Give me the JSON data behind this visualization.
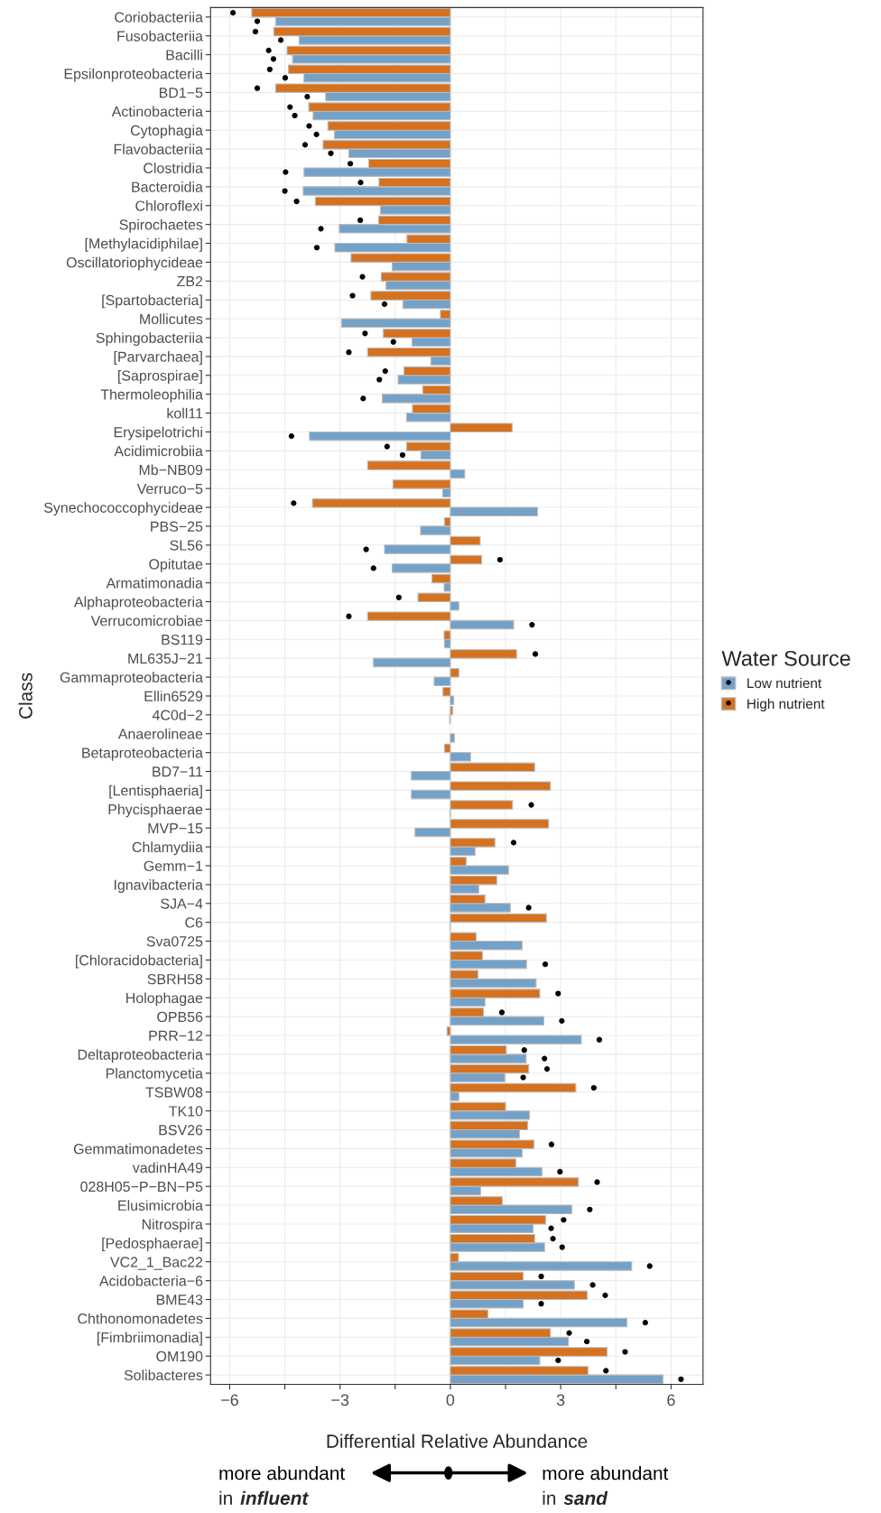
{
  "chart_data": {
    "type": "bar",
    "orientation": "horizontal",
    "xlabel": "Differential Relative Abundance",
    "ylabel": "Class",
    "legend_title": "Water Source",
    "categories": [
      "Coriobacteriia",
      "Fusobacteriia",
      "Bacilli",
      "Epsilonproteobacteria",
      "BD1−5",
      "Actinobacteria",
      "Cytophagia",
      "Flavobacteriia",
      "Clostridia",
      "Bacteroidia",
      "Chloroflexi",
      "Spirochaetes",
      "[Methylacidiphilae]",
      "Oscillatoriophycideae",
      "ZB2",
      "[Spartobacteria]",
      "Mollicutes",
      "Sphingobacteriia",
      "[Parvarchaea]",
      "[Saprospirae]",
      "Thermoleophilia",
      "koll11",
      "Erysipelotrichi",
      "Acidimicrobiia",
      "Mb−NB09",
      "Verruco−5",
      "Synechococcophycideae",
      "PBS−25",
      "SL56",
      "Opitutae",
      "Armatimonadia",
      "Alphaproteobacteria",
      "Verrucomicrobiae",
      "BS119",
      "ML635J−21",
      "Gammaproteobacteria",
      "Ellin6529",
      "4C0d−2",
      "Anaerolineae",
      "Betaproteobacteria",
      "BD7−11",
      "[Lentisphaeria]",
      "Phycisphaerae",
      "MVP−15",
      "Chlamydiia",
      "Gemm−1",
      "Ignavibacteria",
      "SJA−4",
      "C6",
      "Sva0725",
      "[Chloracidobacteria]",
      "SBRH58",
      "Holophagae",
      "OPB56",
      "PRR−12",
      "Deltaproteobacteria",
      "Planctomycetia",
      "TSBW08",
      "TK10",
      "BSV26",
      "Gemmatimonadetes",
      "vadinHA49",
      "028H05−P−BN−P5",
      "Elusimicrobia",
      "Nitrospira",
      "[Pedosphaerae]",
      "VC2_1_Bac22",
      "Acidobacteria−6",
      "BME43",
      "Chthonomonadetes",
      "[Fimbriimonadia]",
      "OM190",
      "Solibacteres"
    ],
    "series": [
      {
        "name": "Low nutrient",
        "color": "#74a1c8",
        "values": [
          -4.75,
          -4.11,
          -4.29,
          -3.98,
          -3.39,
          -3.73,
          -3.15,
          -2.76,
          -3.98,
          -4.0,
          -1.9,
          -3.02,
          -3.14,
          -1.58,
          -1.75,
          -1.29,
          -2.96,
          -1.04,
          -0.53,
          -1.42,
          -1.85,
          -1.19,
          -3.83,
          -0.8,
          0.39,
          -0.21,
          2.37,
          -0.81,
          -1.79,
          -1.58,
          -0.17,
          0.23,
          1.72,
          -0.16,
          -2.09,
          -0.44,
          0.09,
          -0.02,
          0.11,
          0.55,
          -1.06,
          -1.06,
          -0.01,
          -0.96,
          0.67,
          1.58,
          0.77,
          1.63,
          -0.01,
          1.95,
          2.07,
          2.33,
          0.94,
          2.54,
          3.56,
          2.06,
          1.48,
          0.23,
          2.15,
          1.88,
          1.95,
          2.49,
          0.82,
          3.3,
          2.25,
          2.56,
          4.93,
          3.37,
          1.98,
          4.8,
          3.21,
          2.43,
          5.78
        ]
      },
      {
        "name": "High nutrient",
        "color": "#d5711f",
        "values": [
          -5.4,
          -4.8,
          -4.44,
          -4.4,
          -4.75,
          -3.85,
          -3.33,
          -3.46,
          -2.22,
          -1.94,
          -3.67,
          -1.95,
          -1.18,
          -2.7,
          -1.88,
          -2.16,
          -0.27,
          -1.82,
          -2.25,
          -1.26,
          -0.75,
          -1.03,
          1.68,
          -1.19,
          -2.25,
          -1.56,
          -3.75,
          -0.16,
          0.81,
          0.85,
          -0.5,
          -0.88,
          -2.25,
          -0.17,
          1.8,
          0.23,
          -0.2,
          0.06,
          null,
          -0.16,
          2.29,
          2.72,
          1.69,
          2.67,
          1.21,
          0.43,
          1.26,
          0.94,
          2.61,
          0.7,
          0.87,
          0.75,
          2.43,
          0.9,
          -0.09,
          1.52,
          2.13,
          3.41,
          1.5,
          2.1,
          2.27,
          1.78,
          3.48,
          1.41,
          2.59,
          2.29,
          0.22,
          1.98,
          3.72,
          1.02,
          2.72,
          4.26,
          3.74
        ]
      },
      {
        "type": "scatter",
        "marker": "circle",
        "color": "#000000",
        "values": [
          -5.25,
          -4.61,
          -4.81,
          -4.49,
          -3.89,
          -4.23,
          -3.64,
          -3.25,
          -4.48,
          -4.5,
          null,
          -3.52,
          -3.63,
          null,
          null,
          -1.79,
          null,
          -1.55,
          null,
          -1.93,
          -2.37,
          null,
          -4.32,
          -1.3,
          null,
          null,
          null,
          null,
          -2.29,
          -2.09,
          null,
          null,
          2.22,
          null,
          null,
          null,
          null,
          null,
          null,
          null,
          null,
          null,
          null,
          null,
          null,
          null,
          null,
          2.13,
          null,
          null,
          2.58,
          null,
          null,
          3.03,
          4.05,
          2.56,
          1.98,
          null,
          null,
          null,
          null,
          2.98,
          null,
          3.79,
          2.74,
          3.04,
          5.42,
          3.87,
          2.47,
          5.3,
          3.71,
          2.93,
          6.27
        ]
      },
      {
        "type": "scatter",
        "marker": "circle",
        "color": "#000000",
        "values": [
          -5.91,
          -5.3,
          -4.94,
          -4.91,
          -5.25,
          -4.36,
          -3.84,
          -3.95,
          -2.72,
          -2.44,
          -4.18,
          -2.45,
          null,
          null,
          -2.39,
          -2.66,
          null,
          -2.32,
          -2.76,
          -1.77,
          null,
          null,
          null,
          -1.72,
          null,
          null,
          -4.26,
          null,
          null,
          1.35,
          null,
          -1.4,
          -2.76,
          null,
          2.31,
          null,
          null,
          null,
          null,
          null,
          null,
          null,
          2.2,
          null,
          1.72,
          null,
          null,
          null,
          null,
          null,
          null,
          null,
          2.93,
          1.4,
          null,
          2.01,
          2.63,
          3.9,
          null,
          null,
          2.75,
          null,
          3.99,
          null,
          3.08,
          2.79,
          null,
          2.47,
          4.21,
          null,
          3.23,
          4.75,
          4.23
        ]
      }
    ],
    "xlim": [
      -6.52,
      6.87
    ],
    "xticks": [
      -6,
      {
        "value": -4.5,
        "label": null
      },
      -3,
      {
        "value": -1.5,
        "label": null
      },
      0,
      {
        "value": 1.5,
        "label": null
      },
      3,
      {
        "value": 4.5,
        "label": null
      },
      6
    ],
    "grid": true,
    "legend": "right",
    "annotations": [
      "more abundant\nin influent",
      "more abundant\nin sand"
    ]
  }
}
